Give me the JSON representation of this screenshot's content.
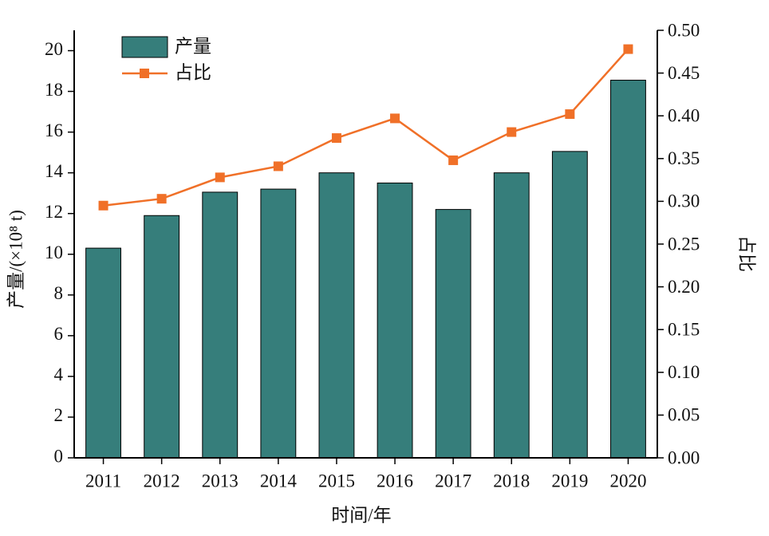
{
  "chart_data": {
    "type": "bar-line",
    "categories": [
      "2011",
      "2012",
      "2013",
      "2014",
      "2015",
      "2016",
      "2017",
      "2018",
      "2019",
      "2020"
    ],
    "series": [
      {
        "name": "产量",
        "type": "bar",
        "color": "#367e7b",
        "values": [
          10.3,
          11.9,
          13.05,
          13.2,
          14.0,
          13.5,
          12.2,
          14.0,
          15.05,
          18.55
        ]
      },
      {
        "name": "占比",
        "type": "line",
        "axis": "y2",
        "color": "#f07028",
        "values": [
          0.295,
          0.303,
          0.328,
          0.341,
          0.374,
          0.397,
          0.348,
          0.381,
          0.402,
          0.478
        ]
      }
    ],
    "xlabel": "时间/年",
    "ylabel": "产量/(×10⁸ t)",
    "y2label": "占比",
    "ylim": [
      0,
      21
    ],
    "yticks": [
      0,
      2,
      4,
      6,
      8,
      10,
      12,
      14,
      16,
      18,
      20
    ],
    "y2lim": [
      0,
      0.5
    ],
    "y2ticks": [
      {
        "value": 0,
        "label": "0.00"
      },
      {
        "value": 0.05,
        "label": "0.05"
      },
      {
        "value": 0.1,
        "label": "0.10"
      },
      {
        "value": 0.15,
        "label": "0.15"
      },
      {
        "value": 0.2,
        "label": "0.20"
      },
      {
        "value": 0.25,
        "label": "0.25"
      },
      {
        "value": 0.3,
        "label": "0.30"
      },
      {
        "value": 0.35,
        "label": "0.35"
      },
      {
        "value": 0.4,
        "label": "0.40"
      },
      {
        "value": 0.45,
        "label": "0.45"
      },
      {
        "value": 0.5,
        "label": "0.50"
      }
    ],
    "legend": "upper left"
  }
}
